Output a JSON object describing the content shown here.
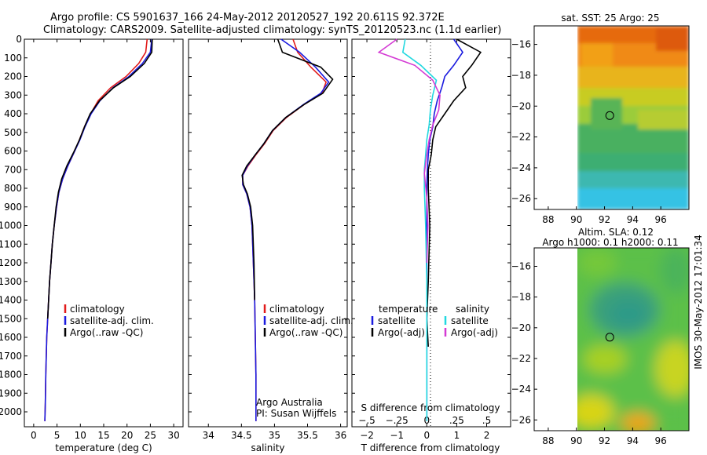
{
  "header": {
    "line1": "Argo profile: CS 5901637_166 24-May-2012 20120527_192 20.611S 92.372E",
    "line2": "Climatology: CARS2009. Satellite-adjusted climatology: synTS_20120523.nc (1.1d earlier)"
  },
  "side_label": "IMOS 30-May-2012 17:01:34",
  "colors": {
    "climatology": "#e11b1b",
    "satellite": "#1a1adf",
    "argo": "#000000",
    "satellite_salinity": "#22d8e0",
    "argo_salinity": "#d43ad4"
  },
  "chart_data": [
    {
      "type": "line",
      "xlabel": "temperature (deg C)",
      "ylabel": "",
      "xlim": [
        -2,
        32
      ],
      "ylim": [
        2080,
        0
      ],
      "xticks": [
        0,
        5,
        10,
        15,
        20,
        25,
        30
      ],
      "yticks": [
        0,
        100,
        200,
        300,
        400,
        500,
        600,
        700,
        800,
        900,
        1000,
        1100,
        1200,
        1300,
        1400,
        1500,
        1600,
        1700,
        1800,
        1900,
        2000
      ],
      "legend": {
        "position": "center-left",
        "entries": [
          "climatology",
          "satellite-adj. clim.",
          "Argo(..raw -QC)"
        ]
      },
      "series": [
        {
          "name": "climatology",
          "color": "#e11b1b",
          "x": [
            24.3,
            24.0,
            22.5,
            19.8,
            16.5,
            13.8,
            12.2,
            10.9,
            9.8,
            8.6,
            7.3,
            6.2,
            5.4,
            4.9,
            4.4,
            4.0,
            3.7,
            3.4,
            3.2,
            3.0,
            2.8,
            2.6,
            2.5,
            2.4
          ],
          "y": [
            0,
            70,
            130,
            200,
            260,
            330,
            400,
            470,
            540,
            610,
            680,
            750,
            820,
            900,
            1000,
            1100,
            1200,
            1300,
            1400,
            1500,
            1600,
            1800,
            1950,
            2050
          ]
        },
        {
          "name": "satellite-adj. clim.",
          "color": "#1a1adf",
          "x": [
            25.3,
            25.0,
            23.3,
            20.4,
            17.0,
            14.2,
            12.3,
            11.0,
            9.9,
            8.6,
            7.3,
            6.2,
            5.4,
            4.9,
            4.4,
            4.0,
            3.7,
            3.4,
            3.2,
            3.0,
            2.8,
            2.6,
            2.5,
            2.4
          ],
          "y": [
            0,
            70,
            130,
            200,
            260,
            330,
            400,
            470,
            540,
            610,
            680,
            750,
            820,
            900,
            1000,
            1100,
            1200,
            1300,
            1400,
            1500,
            1600,
            1800,
            1950,
            2050
          ]
        },
        {
          "name": "Argo(..raw -QC)",
          "color": "#000000",
          "x": [
            25.4,
            25.3,
            23.7,
            20.7,
            17.1,
            14.1,
            12.1,
            10.9,
            9.8,
            8.5,
            7.1,
            6.0,
            5.3,
            4.8,
            4.4,
            4.0,
            3.7,
            3.4,
            3.2,
            3.0
          ],
          "y": [
            0,
            70,
            130,
            200,
            260,
            330,
            400,
            470,
            540,
            610,
            680,
            750,
            820,
            900,
            1000,
            1100,
            1200,
            1300,
            1400,
            1500
          ]
        }
      ]
    },
    {
      "type": "line",
      "xlabel": "salinity",
      "ylabel": "",
      "xlim": [
        33.7,
        36.1
      ],
      "ylim": [
        2080,
        0
      ],
      "xticks": [
        34,
        34.5,
        35,
        35.5,
        36
      ],
      "legend": {
        "position": "center-left",
        "entries": [
          "climatology",
          "satellite-adj. clim.",
          "Argo(..raw -QC)"
        ]
      },
      "annotations": [
        "Argo Australia",
        "PI: Susan Wijffels"
      ],
      "series": [
        {
          "name": "climatology",
          "color": "#e11b1b",
          "x": [
            35.28,
            35.35,
            35.55,
            35.78,
            35.72,
            35.45,
            35.18,
            34.98,
            34.85,
            34.72,
            34.6,
            34.52,
            34.52,
            34.58,
            34.63,
            34.66,
            34.68,
            34.7,
            34.71,
            34.72,
            34.72
          ],
          "y": [
            0,
            70,
            150,
            230,
            290,
            350,
            420,
            490,
            560,
            620,
            680,
            730,
            780,
            830,
            900,
            1000,
            1200,
            1400,
            1600,
            1800,
            2050
          ]
        },
        {
          "name": "satellite-adj. clim.",
          "color": "#1a1adf",
          "x": [
            35.1,
            35.38,
            35.62,
            35.82,
            35.7,
            35.44,
            35.17,
            34.97,
            34.84,
            34.71,
            34.59,
            34.52,
            34.52,
            34.58,
            34.63,
            34.66,
            34.68,
            34.7,
            34.71,
            34.72,
            34.72
          ],
          "y": [
            0,
            70,
            150,
            230,
            290,
            350,
            420,
            490,
            560,
            620,
            680,
            730,
            780,
            830,
            900,
            1000,
            1200,
            1400,
            1600,
            1800,
            2050
          ]
        },
        {
          "name": "Argo(..raw -QC)",
          "color": "#000000",
          "x": [
            35.05,
            35.12,
            35.7,
            35.88,
            35.73,
            35.45,
            35.17,
            34.97,
            34.84,
            34.71,
            34.58,
            34.51,
            34.53,
            34.59,
            34.64,
            34.67,
            34.69,
            34.7
          ],
          "y": [
            0,
            70,
            150,
            215,
            290,
            350,
            420,
            490,
            560,
            620,
            680,
            730,
            780,
            830,
            900,
            1000,
            1200,
            1400
          ]
        }
      ]
    },
    {
      "type": "line",
      "xlabel": "T difference from climatology",
      "x2label": "S difference from climatology",
      "ylabel": "",
      "xlim": [
        -2.5,
        2.8
      ],
      "ylim": [
        2080,
        0
      ],
      "xticks": [
        -2,
        -1,
        0,
        1,
        2
      ],
      "x2ticks": [
        -0.5,
        -0.25,
        0,
        0.25,
        0.5
      ],
      "x2lim": [
        -0.625,
        0.7
      ],
      "legend": {
        "position": "center",
        "headers": [
          "temperature",
          "salinity"
        ],
        "entries": [
          "satellite",
          "Argo(-adj)",
          "satellite",
          "Argo(-adj)"
        ]
      },
      "series": [
        {
          "name": "temperature satellite",
          "color": "#1a1adf",
          "x": [
            0.9,
            1.2,
            0.9,
            0.6,
            0.5,
            0.35,
            0.25,
            0.2,
            0.1,
            0.05,
            0.02,
            0.0,
            0.0,
            0.0,
            0.0,
            0.0
          ],
          "y": [
            0,
            70,
            140,
            200,
            260,
            330,
            400,
            470,
            540,
            620,
            700,
            800,
            1000,
            1300,
            1700,
            2050
          ]
        },
        {
          "name": "temperature Argo(-adj)",
          "color": "#000000",
          "x": [
            1.0,
            1.8,
            1.5,
            1.2,
            1.3,
            0.9,
            0.6,
            0.3,
            0.2,
            0.15,
            0.05,
            0.05,
            0.1,
            0.05,
            0.0,
            0.05
          ],
          "y": [
            0,
            70,
            140,
            200,
            260,
            330,
            400,
            470,
            540,
            620,
            700,
            800,
            1000,
            1300,
            1500,
            1650
          ]
        },
        {
          "name": "salinity satellite",
          "color": "#22d8e0",
          "x": [
            -0.18,
            -0.2,
            -0.05,
            0.08,
            0.05,
            0.03,
            0.02,
            0.0,
            -0.01,
            -0.02,
            -0.02,
            -0.01,
            0.0,
            0.0,
            0.0
          ],
          "y": [
            0,
            70,
            140,
            220,
            300,
            380,
            460,
            540,
            620,
            700,
            800,
            1000,
            1300,
            1700,
            2050
          ]
        },
        {
          "name": "salinity Argo(-adj)",
          "color": "#d43ad4",
          "x": [
            -0.25,
            -0.4,
            -0.1,
            0.05,
            0.11,
            0.1,
            0.05,
            0.02,
            0.0,
            -0.02,
            0.0,
            0.01,
            0.0
          ],
          "y": [
            0,
            70,
            140,
            220,
            300,
            380,
            460,
            540,
            620,
            720,
            850,
            1000,
            1200
          ]
        }
      ]
    },
    {
      "type": "heatmap",
      "title": "sat. SST: 25 Argo: 25",
      "xlim": [
        87,
        98
      ],
      "ylim": [
        -26.7,
        -14.8
      ],
      "xticks": [
        88,
        90,
        92,
        94,
        96
      ],
      "yticks": [
        -16,
        -18,
        -20,
        -22,
        -24,
        -26
      ],
      "marker": {
        "lon": 92.372,
        "lat": -20.611
      },
      "data_extent_lon": [
        90,
        98
      ]
    },
    {
      "type": "heatmap",
      "title": "Altim. SLA: 0.12",
      "subtitle": "Argo h1000: 0.1 h2000: 0.11",
      "xlim": [
        87,
        98
      ],
      "ylim": [
        -26.7,
        -14.8
      ],
      "xticks": [
        88,
        90,
        92,
        94,
        96
      ],
      "yticks": [
        -16,
        -18,
        -20,
        -22,
        -24,
        -26
      ],
      "marker": {
        "lon": 92.372,
        "lat": -20.611
      },
      "data_extent_lon": [
        90,
        98
      ]
    }
  ]
}
